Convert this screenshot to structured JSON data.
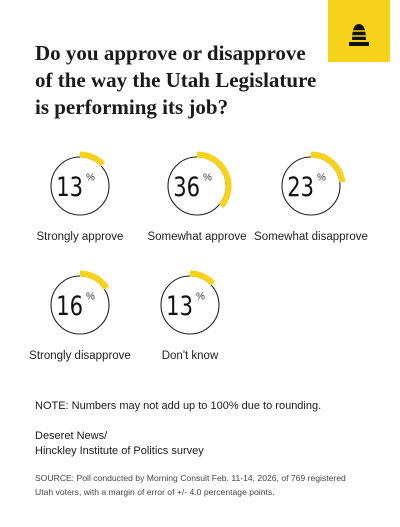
{
  "chart_data": {
    "type": "gauge",
    "title": "Do you approve or disapprove of the way the Utah Legislature is performing its job?",
    "categories": [
      "Strongly approve",
      "Somewhat approve",
      "Somewhat disapprove",
      "Strongly disapprove",
      "Don't know"
    ],
    "values": [
      13,
      36,
      23,
      16,
      13
    ],
    "unit": "%",
    "ylim": [
      0,
      100
    ],
    "color": "#f6d21a"
  },
  "note": "NOTE: Numbers may not add up to 100% due to rounding.",
  "credit": [
    "Deseret News/",
    "Hinckley Institute of Politics survey"
  ],
  "source": "SOURCE: Poll conducted by Morning Consult Feb. 11-14, 2026, of 769 registered Utah voters, with a margin of error of +/- 4.0 percentage points."
}
